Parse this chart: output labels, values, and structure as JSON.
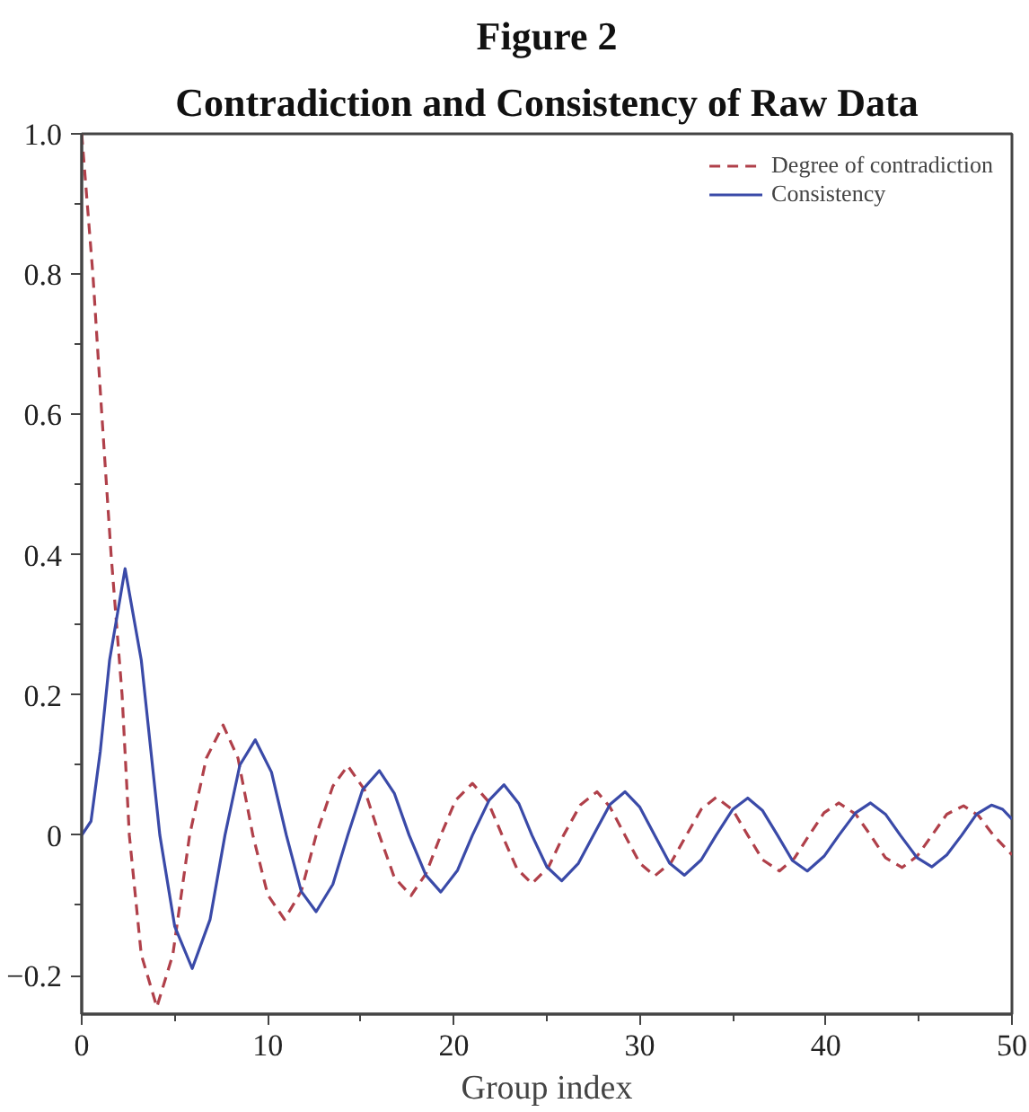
{
  "chart_data": {
    "type": "line",
    "title": "Figure 2",
    "subtitle": "Contradiction and Consistency of Raw Data",
    "xlabel": "Group index",
    "xlim": [
      0,
      50
    ],
    "ylim": [
      -0.255,
      1.0
    ],
    "xticks": [
      0,
      {
        "value": 5,
        "label": null
      },
      10,
      {
        "value": 15,
        "label": null
      },
      20,
      {
        "value": 25,
        "label": null
      },
      30,
      {
        "value": 35,
        "label": null
      },
      40,
      {
        "value": 45,
        "label": null
      },
      50
    ],
    "yticks": [
      {
        "value": -0.2,
        "label": "−0.2"
      },
      {
        "value": -0.1,
        "label": null
      },
      0,
      {
        "value": 0.1,
        "label": null
      },
      0.2,
      {
        "value": 0.3,
        "label": null
      },
      0.4,
      {
        "value": 0.5,
        "label": null
      },
      0.6,
      {
        "value": 0.7,
        "label": null
      },
      0.8,
      {
        "value": 0.9,
        "label": null
      },
      {
        "value": 1,
        "label": "1.0"
      }
    ],
    "grid": false,
    "legend": "top right",
    "marker": "none",
    "series": [
      {
        "name": "Degree of contradiction",
        "color": "#b0404a",
        "line_style": "dashed",
        "x": [
          0,
          0.6,
          1.08,
          1.58,
          2.17,
          2.56,
          3.2,
          4.04,
          4.9,
          5.8,
          6.7,
          7.6,
          8.4,
          9.2,
          10.0,
          10.9,
          11.8,
          12.6,
          13.5,
          14.3,
          15.2,
          16.0,
          16.8,
          17.7,
          18.5,
          19.3,
          20.1,
          21.0,
          21.8,
          22.6,
          23.4,
          24.2,
          25.1,
          25.9,
          26.8,
          27.7,
          28.4,
          29.2,
          30.0,
          30.8,
          31.7,
          32.5,
          33.3,
          34.1,
          35.0,
          35.8,
          36.6,
          37.5,
          38.3,
          39.1,
          39.9,
          40.7,
          41.6,
          42.4,
          43.2,
          44.1,
          44.9,
          45.7,
          46.5,
          47.4,
          48.2,
          49.0,
          50
        ],
        "values": [
          1.0,
          0.8,
          0.6,
          0.4,
          0.2,
          0,
          -0.17,
          -0.245,
          -0.17,
          0,
          0.11,
          0.157,
          0.11,
          0,
          -0.085,
          -0.12,
          -0.08,
          0,
          0.07,
          0.099,
          0.065,
          0,
          -0.06,
          -0.086,
          -0.055,
          0,
          0.05,
          0.074,
          0.05,
          0,
          -0.048,
          -0.069,
          -0.045,
          0,
          0.043,
          0.062,
          0.04,
          0,
          -0.04,
          -0.058,
          -0.038,
          0,
          0.037,
          0.054,
          0.036,
          0,
          -0.035,
          -0.051,
          -0.033,
          0,
          0.032,
          0.046,
          0.03,
          0,
          -0.032,
          -0.046,
          -0.03,
          0,
          0.03,
          0.042,
          0.028,
          0,
          -0.028
        ]
      },
      {
        "name": "Consistency",
        "color": "#3a4aa8",
        "line_style": "solid",
        "x": [
          0,
          0.5,
          1,
          1.5,
          2.33,
          3.2,
          4.2,
          5,
          5.94,
          6.9,
          7.7,
          8.5,
          9.33,
          10.2,
          11.0,
          11.8,
          12.6,
          13.5,
          14.3,
          15.1,
          16.0,
          16.8,
          17.6,
          18.5,
          19.3,
          20.2,
          21.0,
          21.9,
          22.7,
          23.5,
          24.2,
          25.0,
          25.8,
          26.7,
          27.5,
          28.4,
          29.2,
          30.0,
          30.8,
          31.6,
          32.4,
          33.3,
          34.1,
          35.0,
          35.8,
          36.6,
          37.4,
          38.2,
          39.0,
          39.9,
          40.7,
          41.6,
          42.4,
          43.2,
          44.0,
          44.9,
          45.7,
          46.5,
          47.3,
          48.1,
          48.9,
          49.5,
          50
        ],
        "values": [
          0,
          0.02,
          0.12,
          0.25,
          0.38,
          0.25,
          0,
          -0.13,
          -0.19,
          -0.12,
          0,
          0.1,
          0.136,
          0.09,
          0,
          -0.08,
          -0.109,
          -0.07,
          0,
          0.065,
          0.092,
          0.06,
          0,
          -0.057,
          -0.081,
          -0.05,
          0,
          0.05,
          0.072,
          0.045,
          0,
          -0.045,
          -0.065,
          -0.04,
          0,
          0.044,
          0.062,
          0.04,
          0,
          -0.04,
          -0.057,
          -0.035,
          0,
          0.037,
          0.053,
          0.035,
          0,
          -0.036,
          -0.051,
          -0.03,
          0,
          0.032,
          0.046,
          0.03,
          0,
          -0.032,
          -0.045,
          -0.028,
          0,
          0.03,
          0.043,
          0.037,
          0.023
        ]
      }
    ]
  }
}
